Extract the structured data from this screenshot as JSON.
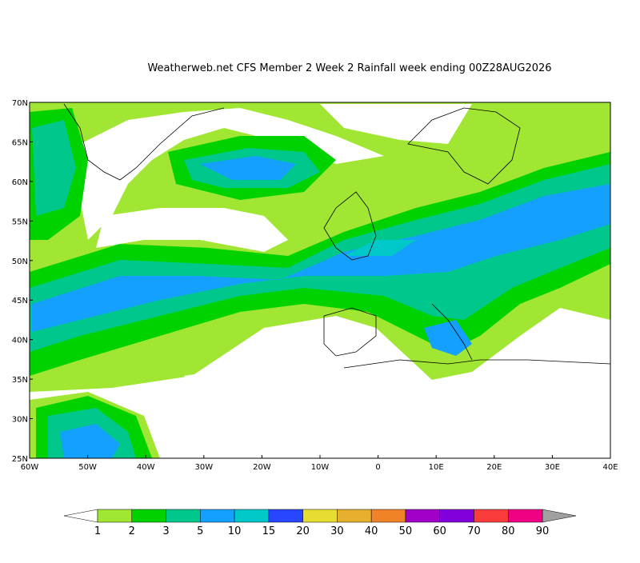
{
  "title": "Weatherweb.net CFS Member 2 Week 2 Rainfall week ending 00Z28AUG2026",
  "lat_labels": [
    "70N",
    "65N",
    "60N",
    "55N",
    "50N",
    "45N",
    "40N",
    "35N",
    "30N",
    "25N"
  ],
  "lon_labels": [
    "60W",
    "50W",
    "40W",
    "30W",
    "20W",
    "10W",
    "0",
    "10E",
    "20E",
    "30E",
    "40E"
  ],
  "colorbar": {
    "labels": [
      "1",
      "2",
      "3",
      "5",
      "10",
      "15",
      "20",
      "30",
      "40",
      "50",
      "60",
      "70",
      "80",
      "90"
    ],
    "colors": [
      "#a0e632",
      "#00d200",
      "#00c88c",
      "#14a0ff",
      "#00c8c8",
      "#2846ff",
      "#e6dc32",
      "#e6af2d",
      "#f08228",
      "#a000c8",
      "#8200dc",
      "#fa3c3c",
      "#f00082"
    ],
    "over_color": "#a0a0a0",
    "under_color": "#ffffff"
  }
}
